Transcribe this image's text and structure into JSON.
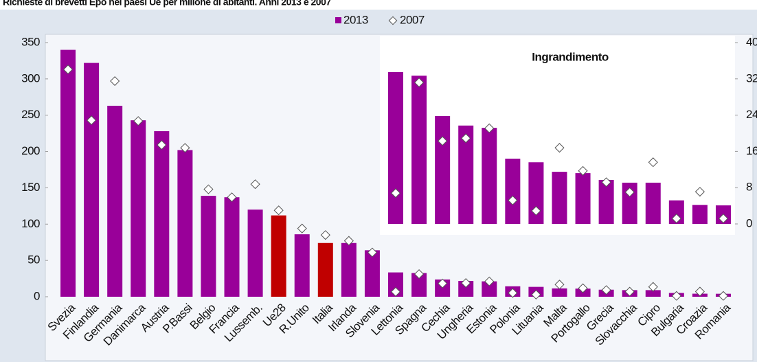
{
  "chart_data": {
    "type": "bar",
    "title": "Richieste di brevetti Epo nei paesi Ue per milione di abitanti. Anni 2013 e 2007",
    "categories": [
      "Svezia",
      "Finlandia",
      "Germania",
      "Danimarca",
      "Austria",
      "P.Bassi",
      "Belgio",
      "Francia",
      "Lussemb.",
      "Ue28",
      "R.Unito",
      "Italia",
      "Irlanda",
      "Slovenia",
      "Lettonia",
      "Spagna",
      "Cechia",
      "Ungheria",
      "Estonia",
      "Polonia",
      "Lituania",
      "Malta",
      "Portogallo",
      "Grecia",
      "Slovacchia",
      "Cipro",
      "Bulgaria",
      "Croazia",
      "Romania"
    ],
    "series": [
      {
        "name": "2013",
        "color": "#990099",
        "colors": [
          "#990099",
          "#990099",
          "#990099",
          "#990099",
          "#990099",
          "#990099",
          "#990099",
          "#990099",
          "#990099",
          "#c00000",
          "#990099",
          "#c00000",
          "#990099",
          "#990099",
          "#990099",
          "#990099",
          "#990099",
          "#990099",
          "#990099",
          "#990099",
          "#990099",
          "#990099",
          "#990099",
          "#990099",
          "#990099",
          "#990099",
          "#990099",
          "#990099",
          "#990099"
        ],
        "values": [
          340,
          322,
          263,
          243,
          228,
          202,
          139,
          137,
          120,
          112,
          86,
          74,
          74,
          64,
          33.5,
          32.7,
          23.8,
          21.7,
          21.2,
          14.4,
          13.6,
          11.5,
          11.2,
          9.7,
          9.1,
          9.1,
          5.2,
          4.2,
          4.1
        ]
      },
      {
        "name": "2007",
        "color": "#ffffff",
        "values": [
          313,
          243,
          297,
          242,
          209,
          205,
          148,
          137,
          155,
          119,
          94,
          85,
          77,
          61,
          6.8,
          31.2,
          18.3,
          18.9,
          21.1,
          5.2,
          2.9,
          16.8,
          11.7,
          9.2,
          7.0,
          13.6,
          1.2,
          7.1,
          1.2
        ]
      }
    ],
    "ylim": [
      0,
      350
    ],
    "yticks": [
      0,
      50,
      100,
      150,
      200,
      250,
      300,
      350
    ],
    "inset": {
      "title": "Ingrandimento",
      "first_category": "Lettonia",
      "y2lim": [
        0,
        40
      ],
      "y2ticks": [
        0,
        8,
        16,
        24,
        32,
        40
      ]
    }
  }
}
